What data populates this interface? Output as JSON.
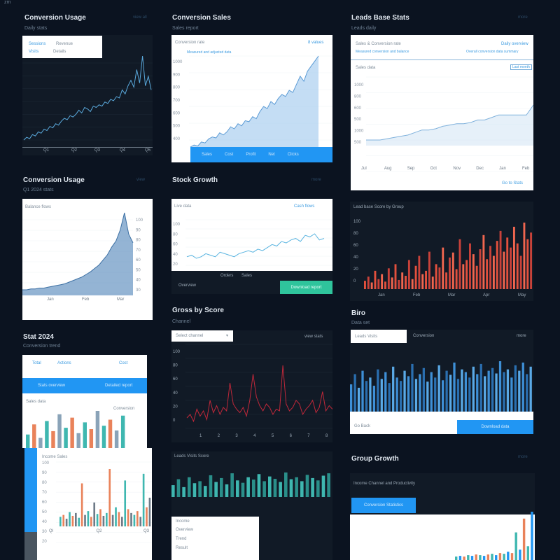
{
  "window": {
    "corner_label": "zm"
  },
  "colors": {
    "accent": "#2196f3",
    "teal": "#3fb7b0",
    "red": "#e2503d",
    "light_blue": "#6ab4e8"
  },
  "panels": [
    {
      "title": "Conversion Usage",
      "subtitle": "Daily stats",
      "link": "view all",
      "legend": [
        "Sessions",
        "Revenue",
        "Visits",
        "Details"
      ],
      "x_labels": [
        "Q1",
        "Q2",
        "Q3",
        "Q4",
        "Q5"
      ],
      "series": [
        8,
        10,
        9,
        12,
        11,
        14,
        13,
        16,
        15,
        18,
        17,
        20,
        19,
        22,
        24,
        23,
        26,
        25,
        27,
        30,
        28,
        32,
        31,
        29,
        33,
        32,
        34,
        33,
        36,
        35,
        38,
        37,
        40,
        39,
        45,
        42,
        48,
        52,
        47,
        60,
        50,
        70,
        48,
        55,
        45
      ]
    },
    {
      "title": "Conversion Sales",
      "subtitle": "Sales report",
      "header": "Conversion rate",
      "link": "8 values",
      "legend": "Measured and adjusted data",
      "y_labels": [
        "1000",
        "900",
        "800",
        "700",
        "600",
        "500",
        "400"
      ],
      "footer_tabs": [
        "Sales",
        "Cost",
        "Profit",
        "Net",
        "Clicks",
        "Total"
      ],
      "series": [
        10,
        12,
        11,
        15,
        14,
        18,
        20,
        19,
        24,
        22,
        25,
        30,
        28,
        33,
        31,
        36,
        35,
        40,
        38,
        45,
        50,
        48,
        55,
        52,
        58,
        62,
        60,
        66,
        64,
        72,
        80,
        75,
        85,
        90,
        95,
        100
      ]
    },
    {
      "title": "Leads Base Stats",
      "subtitle": "Leads daily",
      "link": "more",
      "header": "Sales & Conversion rate",
      "header_right": "Daily overview",
      "legend_left": "Measured conversion and balance",
      "legend_right": "Overall conversion data summary",
      "section": "Sales data",
      "dropdown": "Last month",
      "y_labels": [
        "1000",
        "800",
        "600",
        "500",
        "1000",
        "500"
      ],
      "x_labels": [
        "Jul",
        "Aug",
        "Sep",
        "Oct",
        "Nov",
        "Dec",
        "Jan",
        "Feb"
      ],
      "footer": "Go to Stats",
      "series": [
        20,
        20,
        20,
        21,
        22,
        23,
        24,
        26,
        28,
        28,
        29,
        31,
        32,
        33,
        33,
        34,
        36,
        36,
        38,
        40,
        40,
        40,
        40,
        40,
        48
      ]
    },
    {
      "title": "Conversion Usage",
      "subtitle": "Q1 2024 stats",
      "link": "view",
      "header": "Balance flows",
      "y_labels": [
        "100",
        "90",
        "80",
        "70",
        "60",
        "50",
        "40",
        "30"
      ],
      "x_labels": [
        "Jan",
        "Feb",
        "Mar"
      ],
      "series": [
        5,
        5,
        6,
        6,
        7,
        7,
        8,
        9,
        10,
        11,
        12,
        14,
        16,
        18,
        20,
        23,
        26,
        30,
        34,
        40,
        46,
        55,
        62,
        75,
        95,
        70,
        60
      ]
    },
    {
      "title": "Stock Growth",
      "link": "more",
      "header": "Live data",
      "legend": "Cash flows",
      "y_labels": [
        "100",
        "80",
        "60",
        "40",
        "20"
      ],
      "footer": [
        "Overview",
        "Orders",
        "Sales"
      ],
      "button": "Download report",
      "series": [
        30,
        31,
        29,
        30,
        32,
        31,
        30,
        33,
        32,
        31,
        30,
        32,
        33,
        34,
        33,
        35,
        34,
        36,
        38,
        37,
        40,
        39,
        41,
        42,
        40,
        44,
        43,
        45,
        41,
        42
      ]
    },
    {
      "title": "",
      "subtitle": "",
      "header": "Lead base Score by Group",
      "y_labels": [
        "100",
        "80",
        "60",
        "40",
        "20",
        "0"
      ],
      "x_labels": [
        "Jan",
        "Feb",
        "Mar",
        "Apr",
        "May"
      ],
      "series": [
        10,
        15,
        8,
        22,
        12,
        18,
        9,
        25,
        14,
        30,
        11,
        20,
        16,
        35,
        12,
        28,
        40,
        18,
        22,
        45,
        15,
        30,
        26,
        50,
        20,
        38,
        44,
        24,
        60,
        30,
        35,
        55,
        42,
        28,
        48,
        65,
        36,
        52,
        40,
        58,
        70,
        45,
        62,
        50,
        75,
        55,
        40,
        80,
        60,
        68
      ]
    },
    {
      "title": "Stat 2024",
      "subtitle": "Conversion trend",
      "tabs": [
        "Total",
        "Actions",
        "Cost"
      ],
      "button_labels": [
        "Stats overview",
        "Detailed report"
      ],
      "section": [
        "Sales data",
        "Conversion"
      ],
      "series": [
        20,
        35,
        15,
        40,
        25,
        50,
        30,
        45,
        22,
        38,
        28,
        55,
        33,
        42,
        26,
        48
      ]
    },
    {
      "title": "Gross by Score",
      "subtitle": "Channel",
      "dropdown": "Select channel",
      "link": "view stats",
      "y_labels": [
        "100",
        "80",
        "60",
        "40",
        "20",
        "0"
      ],
      "x_labels": [
        "1",
        "2",
        "3",
        "4",
        "5",
        "6",
        "7",
        "8"
      ],
      "series": [
        40,
        42,
        38,
        45,
        41,
        44,
        39,
        50,
        43,
        47,
        42,
        46,
        44,
        60,
        48,
        45,
        43,
        46,
        41,
        50,
        65,
        52,
        47,
        44,
        48,
        46,
        42,
        45,
        44,
        70,
        48,
        44,
        46,
        50,
        48,
        42,
        45,
        47,
        50,
        43,
        46,
        55,
        44,
        47,
        45
      ]
    },
    {
      "title": "Biro",
      "subtitle": "Data set",
      "header": "Leads Visits",
      "header_right": "Conversion",
      "link": "more",
      "footer": "Go Back",
      "button": "Download data",
      "series": [
        40,
        55,
        35,
        60,
        45,
        50,
        38,
        62,
        48,
        58,
        42,
        66,
        50,
        45,
        60,
        52,
        70,
        48,
        55,
        64,
        44,
        58,
        50,
        68,
        46,
        60,
        54,
        72,
        48,
        62,
        58,
        50,
        66,
        55,
        70,
        52,
        60,
        64,
        56,
        74,
        58,
        62,
        50,
        68,
        60,
        72,
        55,
        66
      ]
    },
    {
      "header": "Income Sales",
      "y_labels": [
        "100",
        "90",
        "80",
        "70",
        "60",
        "50",
        "40",
        "30",
        "20"
      ],
      "x_labels": [
        "Ql",
        "Q2",
        "Q3"
      ],
      "series": [
        10,
        12,
        8,
        15,
        11,
        14,
        9,
        45,
        12,
        16,
        10,
        25,
        13,
        18,
        11,
        14,
        60,
        12,
        20,
        15,
        10,
        48,
        18,
        14,
        12,
        16,
        10,
        55,
        20,
        30
      ]
    },
    {
      "header": "Leads Visits Score",
      "labels": [
        "Income",
        "Overview",
        "Trend",
        "Result"
      ],
      "series": [
        30,
        45,
        25,
        50,
        35,
        40,
        28,
        55,
        38,
        48,
        32,
        60,
        42,
        36,
        50,
        44,
        58,
        40,
        52,
        46,
        38,
        62,
        45,
        50,
        40,
        56,
        48,
        42,
        54,
        60
      ]
    },
    {
      "title": "Group Growth",
      "link": "more",
      "header": "Income Channel and Productivity",
      "button": "Conversion Statistics",
      "series": [
        5,
        6,
        5,
        7,
        6,
        8,
        7,
        6,
        8,
        9,
        7,
        10,
        9,
        12,
        10,
        40,
        15,
        60,
        20,
        70
      ]
    }
  ]
}
